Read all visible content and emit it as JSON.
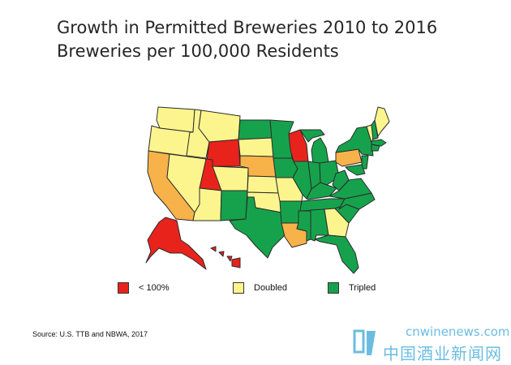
{
  "title": {
    "line1": "Growth in Permitted Breweries 2010 to 2016",
    "line2": "Breweries per 100,000 Residents"
  },
  "colors": {
    "red": "#e8231c",
    "yellow": "#fcf58e",
    "green": "#16a24c",
    "orange": "#f7b24a",
    "border": "#2b2b2b"
  },
  "legend": [
    {
      "label": "< 100%",
      "color": "#e8231c"
    },
    {
      "label": "Doubled",
      "color": "#fcf58e"
    },
    {
      "label": "Tripled",
      "color": "#16a24c"
    }
  ],
  "states": [
    {
      "id": "WA",
      "color": "yellow"
    },
    {
      "id": "OR",
      "color": "yellow"
    },
    {
      "id": "CA",
      "color": "orange"
    },
    {
      "id": "ID",
      "color": "yellow"
    },
    {
      "id": "NV",
      "color": "yellow"
    },
    {
      "id": "MT",
      "color": "yellow"
    },
    {
      "id": "WY",
      "color": "red"
    },
    {
      "id": "UT",
      "color": "red"
    },
    {
      "id": "AZ",
      "color": "yellow"
    },
    {
      "id": "CO",
      "color": "yellow"
    },
    {
      "id": "NM",
      "color": "green"
    },
    {
      "id": "ND",
      "color": "green"
    },
    {
      "id": "SD",
      "color": "yellow"
    },
    {
      "id": "NE",
      "color": "orange"
    },
    {
      "id": "KS",
      "color": "yellow"
    },
    {
      "id": "OK",
      "color": "yellow"
    },
    {
      "id": "TX",
      "color": "green"
    },
    {
      "id": "MN",
      "color": "green"
    },
    {
      "id": "IA",
      "color": "green"
    },
    {
      "id": "MO",
      "color": "yellow"
    },
    {
      "id": "AR",
      "color": "green"
    },
    {
      "id": "LA",
      "color": "orange"
    },
    {
      "id": "WI",
      "color": "red"
    },
    {
      "id": "IL",
      "color": "green"
    },
    {
      "id": "MI",
      "color": "green"
    },
    {
      "id": "IN",
      "color": "green"
    },
    {
      "id": "OH",
      "color": "green"
    },
    {
      "id": "KY",
      "color": "green"
    },
    {
      "id": "TN",
      "color": "green"
    },
    {
      "id": "MS",
      "color": "green"
    },
    {
      "id": "AL",
      "color": "green"
    },
    {
      "id": "GA",
      "color": "yellow"
    },
    {
      "id": "FL",
      "color": "green"
    },
    {
      "id": "SC",
      "color": "green"
    },
    {
      "id": "NC",
      "color": "green"
    },
    {
      "id": "VA",
      "color": "green"
    },
    {
      "id": "WV",
      "color": "green"
    },
    {
      "id": "PA",
      "color": "orange"
    },
    {
      "id": "NY",
      "color": "green"
    },
    {
      "id": "VT",
      "color": "yellow"
    },
    {
      "id": "NH",
      "color": "green"
    },
    {
      "id": "ME",
      "color": "yellow"
    },
    {
      "id": "MA",
      "color": "green"
    },
    {
      "id": "CT",
      "color": "green"
    },
    {
      "id": "NJ",
      "color": "green"
    },
    {
      "id": "MD",
      "color": "green"
    },
    {
      "id": "AK",
      "color": "red"
    },
    {
      "id": "HI",
      "color": "red"
    }
  ],
  "source": "Source: U.S. TTB and NBWA, 2017",
  "watermark": {
    "url": "cnwinenews.com",
    "cn": "中国酒业新闻网"
  }
}
